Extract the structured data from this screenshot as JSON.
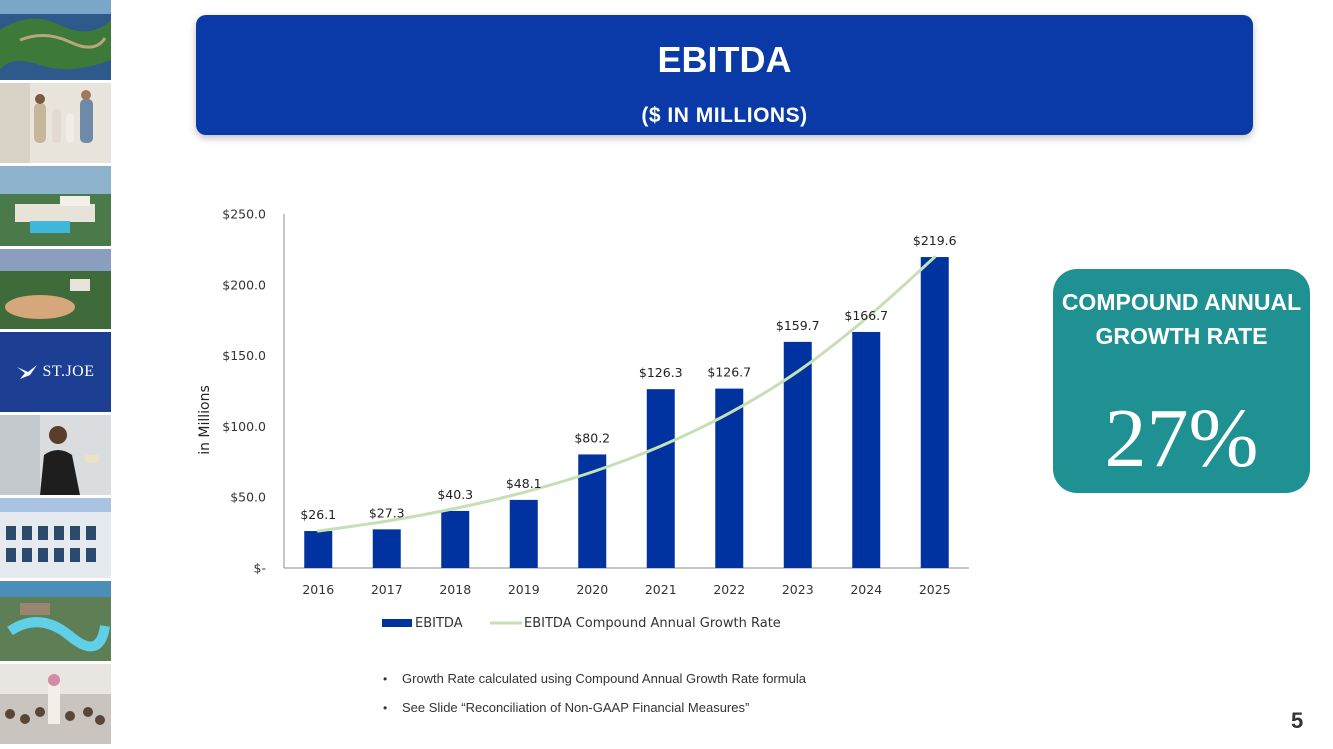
{
  "header": {
    "title": "EBITDA",
    "subtitle": "($ IN MILLIONS)"
  },
  "sidebar": {
    "logo_text": "ST.JOE",
    "photos": [
      "golf-course-aerial",
      "family-walking",
      "resort-pool-aerial",
      "lakeside-homes-sunset",
      "logo",
      "staff-member",
      "office-building",
      "water-park-aerial",
      "event-crowd"
    ]
  },
  "chart_data": {
    "type": "bar",
    "categories": [
      "2016",
      "2017",
      "2018",
      "2019",
      "2020",
      "2021",
      "2022",
      "2023",
      "2024",
      "2025"
    ],
    "series": [
      {
        "name": "EBITDA",
        "type": "bar",
        "values": [
          26.1,
          27.3,
          40.3,
          48.1,
          80.2,
          126.3,
          126.7,
          159.7,
          166.7,
          219.6
        ],
        "color": "#0033a0"
      },
      {
        "name": "EBITDA Compound Annual Growth Rate",
        "type": "line",
        "values": [
          26.1,
          33.1,
          42.1,
          53.4,
          67.8,
          86.1,
          109.3,
          138.8,
          176.3,
          219.6
        ],
        "color": "#c5e0b4"
      }
    ],
    "data_labels": [
      "$26.1",
      "$27.3",
      "$40.3",
      "$48.1",
      "$80.2",
      "$126.3",
      "$126.7",
      "$159.7",
      "$166.7",
      "$219.6"
    ],
    "ylabel": "in Millions",
    "ylim": [
      0,
      250
    ],
    "yticks": [
      0,
      50,
      100,
      150,
      200,
      250
    ],
    "ytick_labels": [
      "$-",
      "$50.0",
      "$100.0",
      "$150.0",
      "$200.0",
      "$250.0"
    ],
    "grid": false,
    "legend_position": "bottom"
  },
  "cagr_box": {
    "title": "COMPOUND ANNUAL GROWTH RATE",
    "value": "27%",
    "color": "#1f9193"
  },
  "notes": [
    "Growth Rate calculated using Compound Annual Growth Rate formula",
    "See Slide “Reconciliation of Non-GAAP Financial Measures”"
  ],
  "page_number": "5"
}
